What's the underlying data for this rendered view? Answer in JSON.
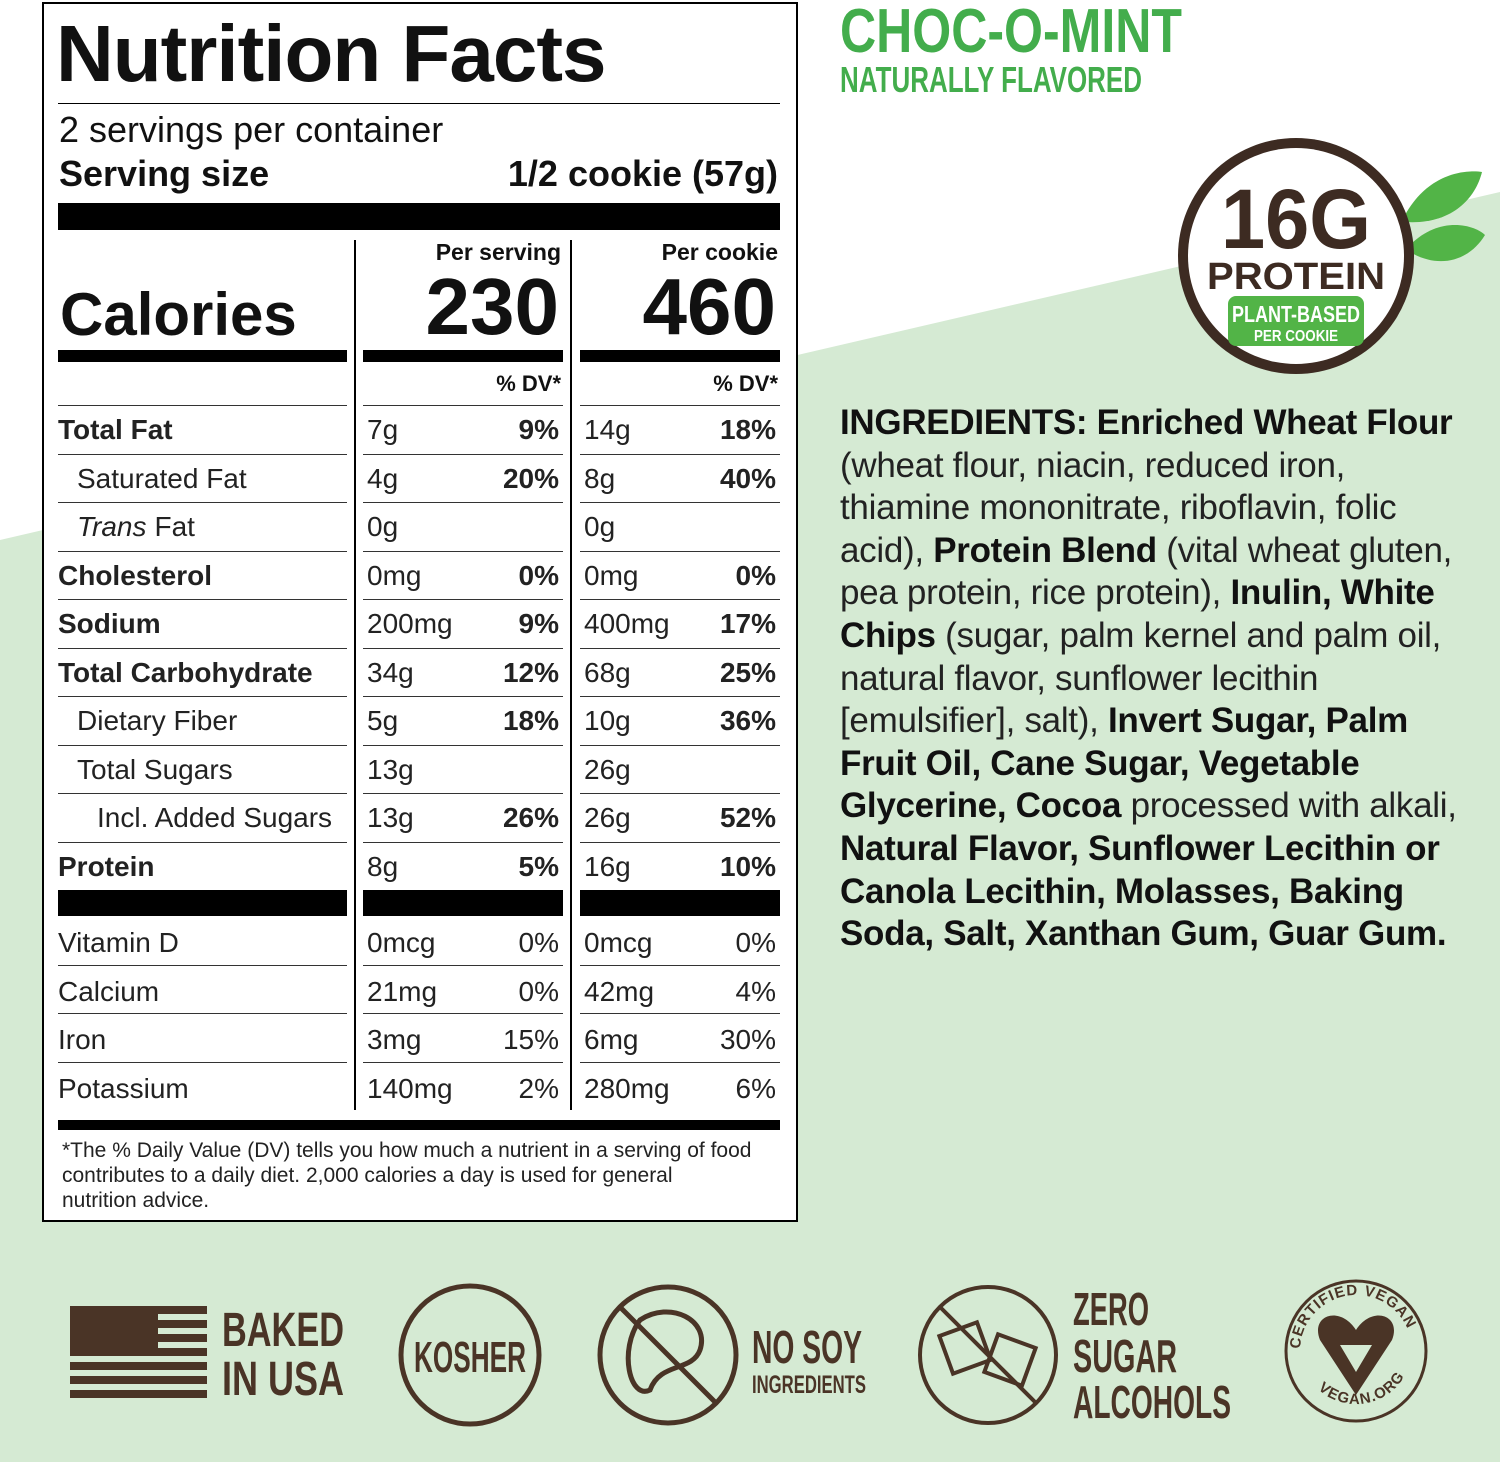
{
  "product": {
    "name": "CHOC-O-MINT",
    "flavor": "NATURALLY FLAVORED"
  },
  "badge": {
    "amount": "16G",
    "label": "PROTEIN",
    "sub1": "PLANT-BASED",
    "sub2": "PER COOKIE"
  },
  "nutrition": {
    "title": "Nutrition Facts",
    "servings": "2 servings per container",
    "serving_size_label": "Serving size",
    "serving_size": "1/2 cookie (57g)",
    "calories_label": "Calories",
    "columns": [
      {
        "header": "Per serving",
        "calories": "230"
      },
      {
        "header": "Per cookie",
        "calories": "460"
      }
    ],
    "dv_header": "% DV*",
    "rows": [
      {
        "name": "Total Fat",
        "bold": true,
        "indent": 0,
        "values": [
          [
            "7g",
            "9%"
          ],
          [
            "14g",
            "18%"
          ]
        ]
      },
      {
        "name": "Saturated Fat",
        "bold": false,
        "indent": 1,
        "values": [
          [
            "4g",
            "20%"
          ],
          [
            "8g",
            "40%"
          ]
        ]
      },
      {
        "name_italic": "Trans",
        "name": "Fat",
        "bold": false,
        "indent": 1,
        "values": [
          [
            "0g"
          ],
          [
            "0g"
          ]
        ]
      },
      {
        "name": "Cholesterol",
        "bold": true,
        "indent": 0,
        "values": [
          [
            "0mg",
            "0%"
          ],
          [
            "0mg",
            "0%"
          ]
        ]
      },
      {
        "name": "Sodium",
        "bold": true,
        "indent": 0,
        "values": [
          [
            "200mg",
            "9%"
          ],
          [
            "400mg",
            "17%"
          ]
        ]
      },
      {
        "name": "Total Carbohydrate",
        "bold": true,
        "indent": 0,
        "values": [
          [
            "34g",
            "12%"
          ],
          [
            "68g",
            "25%"
          ]
        ]
      },
      {
        "name": "Dietary Fiber",
        "bold": false,
        "indent": 1,
        "values": [
          [
            "5g",
            "18%"
          ],
          [
            "10g",
            "36%"
          ]
        ]
      },
      {
        "name": "Total Sugars",
        "bold": false,
        "indent": 1,
        "values": [
          [
            "13g"
          ],
          [
            "26g"
          ]
        ]
      },
      {
        "name": "Incl. Added Sugars",
        "bold": false,
        "indent": 2,
        "values": [
          [
            "13g",
            "26%"
          ],
          [
            "26g",
            "52%"
          ]
        ]
      },
      {
        "name": "Protein",
        "bold": true,
        "indent": 0,
        "values": [
          [
            "8g",
            "5%"
          ],
          [
            "16g",
            "10%"
          ]
        ]
      }
    ],
    "minerals": [
      {
        "name": "Vitamin D",
        "values": [
          [
            "0mcg",
            "0%"
          ],
          [
            "0mcg",
            "0%"
          ]
        ]
      },
      {
        "name": "Calcium",
        "values": [
          [
            "21mg",
            "0%"
          ],
          [
            "42mg",
            "4%"
          ]
        ]
      },
      {
        "name": "Iron",
        "values": [
          [
            "3mg",
            "15%"
          ],
          [
            "6mg",
            "30%"
          ]
        ]
      },
      {
        "name": "Potassium",
        "values": [
          [
            "140mg",
            "2%"
          ],
          [
            "280mg",
            "6%"
          ]
        ]
      }
    ],
    "footnote": "*The % Daily Value (DV) tells you how much a nutrient in a serving of food contributes to a daily diet. 2,000 calories a day is used for general nutrition advice."
  },
  "ingredients": [
    {
      "text": "INGREDIENTS: Enriched Wheat Flour",
      "bold": true
    },
    {
      "text": " (wheat flour, niacin, reduced iron, thiamine mononitrate, riboflavin, folic acid), ",
      "bold": false
    },
    {
      "text": "Protein Blend",
      "bold": true
    },
    {
      "text": " (vital wheat gluten, pea protein, rice protein), ",
      "bold": false
    },
    {
      "text": "Inulin, White Chips",
      "bold": true
    },
    {
      "text": " (sugar, palm kernel and palm oil, natural flavor, sunflower lecithin [emulsifier], salt), ",
      "bold": false
    },
    {
      "text": "Invert Sugar, Palm Fruit Oil, Cane Sugar, Vegetable Glycerine, Cocoa",
      "bold": true
    },
    {
      "text": " processed with alkali, ",
      "bold": false
    },
    {
      "text": "Natural Flavor, Sunflower Lecithin or Canola Lecithin, Molasses, Baking Soda, Salt, Xanthan Gum, Guar Gum.",
      "bold": true
    }
  ],
  "badges": {
    "baked": [
      "BAKED",
      "IN USA"
    ],
    "kosher": "KOSHER",
    "no_soy": [
      "NO SOY",
      "INGREDIENTS"
    ],
    "zero": [
      "ZERO",
      "SUGAR",
      "ALCOHOLS"
    ],
    "vegan": [
      "CERTIFIED VEGAN",
      "VEGAN.ORG"
    ]
  }
}
